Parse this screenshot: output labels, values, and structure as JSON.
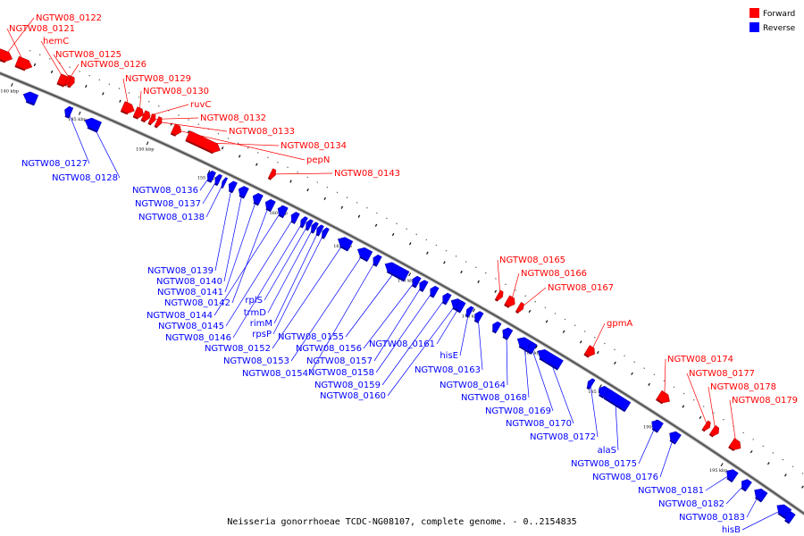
{
  "caption": "Neisseria gonorrhoeae TCDC-NG08107, complete genome. - 0..2154835",
  "legend": [
    {
      "label": "Forward",
      "color": "#ff0000"
    },
    {
      "label": "Reverse",
      "color": "#0000ff"
    }
  ],
  "colors": {
    "forward": "#ff0000",
    "reverse": "#0000ff",
    "backbone": "#555555"
  },
  "scale_labels": [
    "140 kbp",
    "145 kbp",
    "150 kbp",
    "155 kbp",
    "160 kbp",
    "165 kbp",
    "170 kbp",
    "175 kbp",
    "180 kbp",
    "185 kbp",
    "190 kbp",
    "195 kbp"
  ],
  "forward_genes": [
    "NGTW08_0121",
    "NGTW08_0122",
    "hemC",
    "NGTW08_0125",
    "NGTW08_0126",
    "NGTW08_0129",
    "NGTW08_0130",
    "ruvC",
    "NGTW08_0132",
    "NGTW08_0133",
    "NGTW08_0134",
    "pepN",
    "NGTW08_0143",
    "NGTW08_0165",
    "NGTW08_0166",
    "NGTW08_0167",
    "gpmA",
    "NGTW08_0174",
    "NGTW08_0177",
    "NGTW08_0178",
    "NGTW08_0179"
  ],
  "reverse_genes": [
    "NGTW08_0127",
    "NGTW08_0128",
    "NGTW08_0136",
    "NGTW08_0137",
    "NGTW08_0138",
    "NGTW08_0139",
    "NGTW08_0140",
    "NGTW08_0141",
    "NGTW08_0142",
    "NGTW08_0144",
    "NGTW08_0145",
    "NGTW08_0146",
    "rplS",
    "trmD",
    "rimM",
    "rpsP",
    "NGTW08_0152",
    "NGTW08_0153",
    "NGTW08_0154",
    "NGTW08_0155",
    "NGTW08_0156",
    "NGTW08_0157",
    "NGTW08_0158",
    "NGTW08_0159",
    "NGTW08_0160",
    "NGTW08_0161",
    "hisE",
    "NGTW08_0163",
    "NGTW08_0164",
    "NGTW08_0168",
    "NGTW08_0169",
    "NGTW08_0170",
    "NGTW08_0172",
    "alaS",
    "NGTW08_0175",
    "NGTW08_0176",
    "NGTW08_0181",
    "NGTW08_0182",
    "NGTW08_0183",
    "hisB"
  ]
}
